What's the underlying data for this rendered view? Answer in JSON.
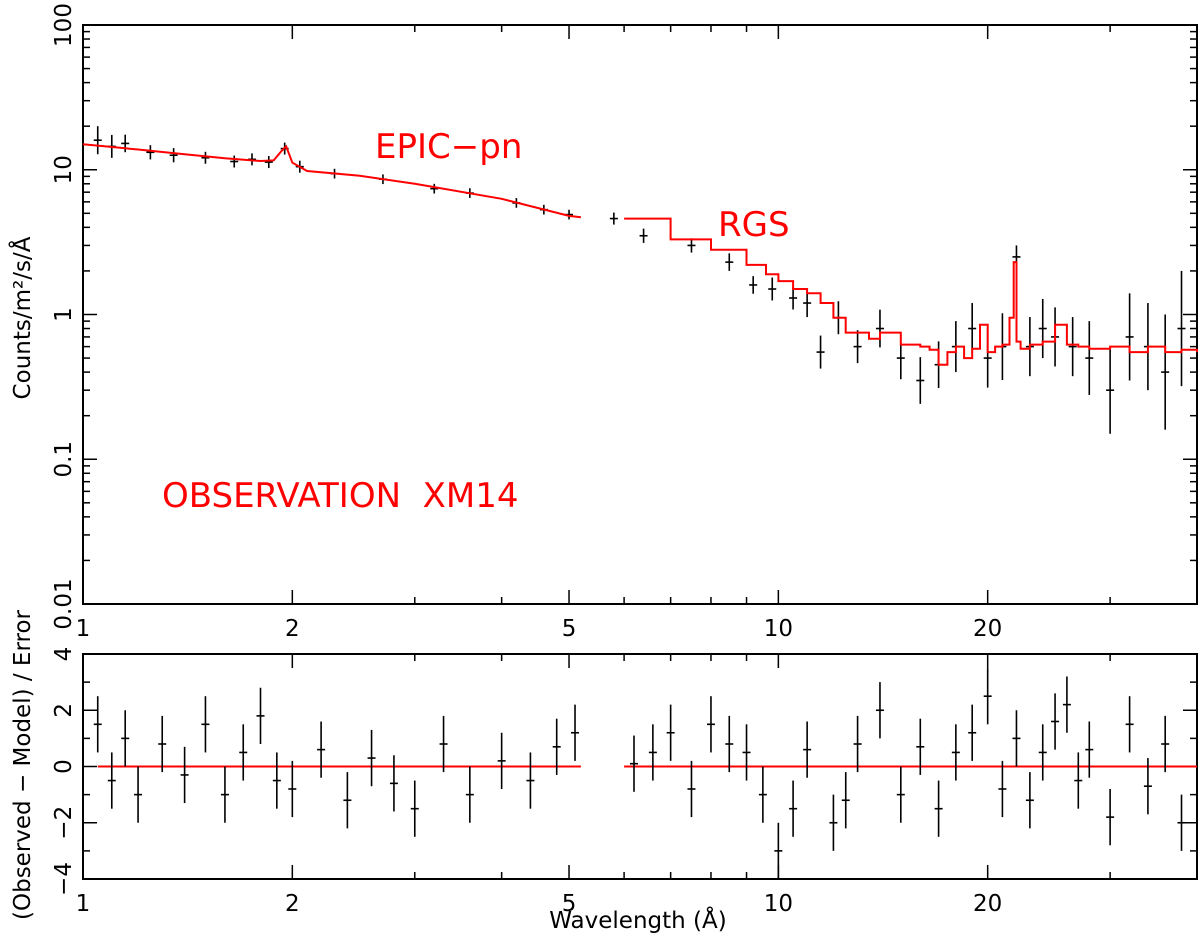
{
  "chart_data": [
    {
      "panel": "spectrum",
      "type": "line",
      "x_scale": "log",
      "y_scale": "log",
      "xlim": [
        1,
        40
      ],
      "ylim": [
        0.01,
        100
      ],
      "ylabel": "Counts/m²/s/Å",
      "x_ticks": [
        1,
        2,
        5,
        10,
        20
      ],
      "x_tick_labels": [
        "1",
        "2",
        "5",
        "10",
        "20"
      ],
      "y_ticks": [
        0.01,
        0.1,
        1,
        10,
        100
      ],
      "y_tick_labels": [
        "0.01",
        "0.1",
        "1",
        "10",
        "100"
      ],
      "annotations": {
        "epic": "EPIC−pn",
        "rgs": "RGS",
        "observation": "OBSERVATION  XM14"
      },
      "colors": {
        "model": "#ff0000",
        "data": "#000000"
      },
      "series": [
        {
          "name": "EPIC-pn model",
          "x": [
            1.0,
            1.2,
            1.4,
            1.6,
            1.8,
            1.88,
            1.93,
            1.96,
            2.0,
            2.1,
            2.5,
            3.0,
            4.0,
            5.0,
            5.2
          ],
          "y": [
            15.0,
            13.8,
            12.8,
            12.0,
            11.5,
            11.6,
            13.5,
            14.5,
            11.2,
            9.8,
            9.1,
            8.0,
            6.3,
            4.8,
            4.7
          ]
        },
        {
          "name": "RGS model",
          "x": [
            6.0,
            7.0,
            8.0,
            9.0,
            9.6,
            10.0,
            10.5,
            11.0,
            11.5,
            12.0,
            12.5,
            13.5,
            14.0,
            15.0,
            16.0,
            16.5,
            17.0,
            17.5,
            18.0,
            18.5,
            19.0,
            19.5,
            20.0,
            20.5,
            21.0,
            21.5,
            21.8,
            22.0,
            22.3,
            23.0,
            24.0,
            25.0,
            26.0,
            27.0,
            28.0,
            30.0,
            32.0,
            34.0,
            36.0,
            38.0,
            40.0
          ],
          "y": [
            4.6,
            3.3,
            2.8,
            2.2,
            1.9,
            1.7,
            1.5,
            1.4,
            1.2,
            0.95,
            0.75,
            0.68,
            0.75,
            0.62,
            0.6,
            0.57,
            0.45,
            0.55,
            0.6,
            0.5,
            0.58,
            0.85,
            0.55,
            0.6,
            0.62,
            0.95,
            2.3,
            0.65,
            0.58,
            0.62,
            0.65,
            0.85,
            0.62,
            0.6,
            0.58,
            0.6,
            0.55,
            0.6,
            0.55,
            0.57,
            0.55
          ]
        }
      ],
      "data_points": {
        "x": [
          1.05,
          1.1,
          1.15,
          1.25,
          1.35,
          1.5,
          1.65,
          1.75,
          1.85,
          1.95,
          2.05,
          2.3,
          2.7,
          3.2,
          3.6,
          4.2,
          4.6,
          5.0,
          5.8,
          6.4,
          7.5,
          8.5,
          9.2,
          9.8,
          10.5,
          11.0,
          11.5,
          12.2,
          13.0,
          14.0,
          15.0,
          16.0,
          17.0,
          18.0,
          19.0,
          20.0,
          21.0,
          22.0,
          23.0,
          24.0,
          25.0,
          26.5,
          28.0,
          30.0,
          32.0,
          34.0,
          36.0,
          38.0
        ],
        "y": [
          16.0,
          14.5,
          15.2,
          13.2,
          12.6,
          12.1,
          11.4,
          11.8,
          11.3,
          14.0,
          10.5,
          9.4,
          8.6,
          7.4,
          6.9,
          5.9,
          5.3,
          4.9,
          4.6,
          3.5,
          3.0,
          2.3,
          1.6,
          1.5,
          1.3,
          1.2,
          0.55,
          0.95,
          0.6,
          0.8,
          0.5,
          0.35,
          0.45,
          0.6,
          0.8,
          0.5,
          0.6,
          2.5,
          0.6,
          0.8,
          0.7,
          0.6,
          0.5,
          0.3,
          0.7,
          0.6,
          0.4,
          0.8
        ],
        "yerr_factor": [
          1.25,
          1.2,
          1.15,
          1.12,
          1.12,
          1.1,
          1.1,
          1.1,
          1.1,
          1.1,
          1.1,
          1.08,
          1.08,
          1.08,
          1.08,
          1.08,
          1.08,
          1.08,
          1.1,
          1.12,
          1.12,
          1.15,
          1.15,
          1.2,
          1.2,
          1.25,
          1.3,
          1.3,
          1.3,
          1.35,
          1.4,
          1.45,
          1.45,
          1.5,
          1.5,
          1.6,
          1.7,
          1.2,
          1.6,
          1.6,
          1.6,
          1.6,
          1.8,
          2.0,
          2.0,
          2.0,
          2.5,
          2.5
        ]
      }
    },
    {
      "panel": "residuals",
      "type": "scatter",
      "x_scale": "log",
      "xlim": [
        1,
        40
      ],
      "ylim": [
        -4,
        4
      ],
      "xlabel": "Wavelength (Å)",
      "ylabel": "(Observed − Model) / Error",
      "x_ticks": [
        1,
        2,
        5,
        10,
        20
      ],
      "x_tick_labels": [
        "1",
        "2",
        "5",
        "10",
        "20"
      ],
      "y_ticks": [
        -4,
        -2,
        0,
        2,
        4
      ],
      "y_tick_labels": [
        "−4",
        "−2",
        "0",
        "2",
        "4"
      ],
      "zero_line_segments": [
        [
          1.05,
          5.2
        ],
        [
          6.0,
          40
        ]
      ],
      "residuals": {
        "x": [
          1.05,
          1.1,
          1.15,
          1.2,
          1.3,
          1.4,
          1.5,
          1.6,
          1.7,
          1.8,
          1.9,
          2.0,
          2.2,
          2.4,
          2.6,
          2.8,
          3.0,
          3.3,
          3.6,
          4.0,
          4.4,
          4.8,
          5.1,
          6.2,
          6.6,
          7.0,
          7.5,
          8.0,
          8.5,
          9.0,
          9.5,
          10.0,
          10.5,
          11.0,
          12.0,
          12.5,
          13.0,
          14.0,
          15.0,
          16.0,
          17.0,
          18.0,
          19.0,
          20.0,
          21.0,
          22.0,
          23.0,
          24.0,
          25.0,
          26.0,
          27.0,
          28.0,
          30.0,
          32.0,
          34.0,
          36.0,
          38.0
        ],
        "y": [
          1.5,
          -0.5,
          1.0,
          -1.0,
          0.8,
          -0.3,
          1.5,
          -1.0,
          0.5,
          1.8,
          -0.5,
          -0.8,
          0.6,
          -1.2,
          0.3,
          -0.6,
          -1.5,
          0.8,
          -1.0,
          0.2,
          -0.5,
          0.7,
          1.2,
          0.1,
          0.5,
          1.2,
          -0.8,
          1.5,
          0.8,
          0.5,
          -1.0,
          -3.0,
          -1.5,
          0.6,
          -2.0,
          -1.2,
          0.8,
          2.0,
          -1.0,
          0.7,
          -1.5,
          0.5,
          1.2,
          2.5,
          -0.8,
          1.0,
          -1.2,
          0.5,
          1.6,
          2.2,
          -0.5,
          0.6,
          -1.8,
          1.5,
          -0.7,
          0.8,
          -2.0
        ]
      }
    }
  ]
}
